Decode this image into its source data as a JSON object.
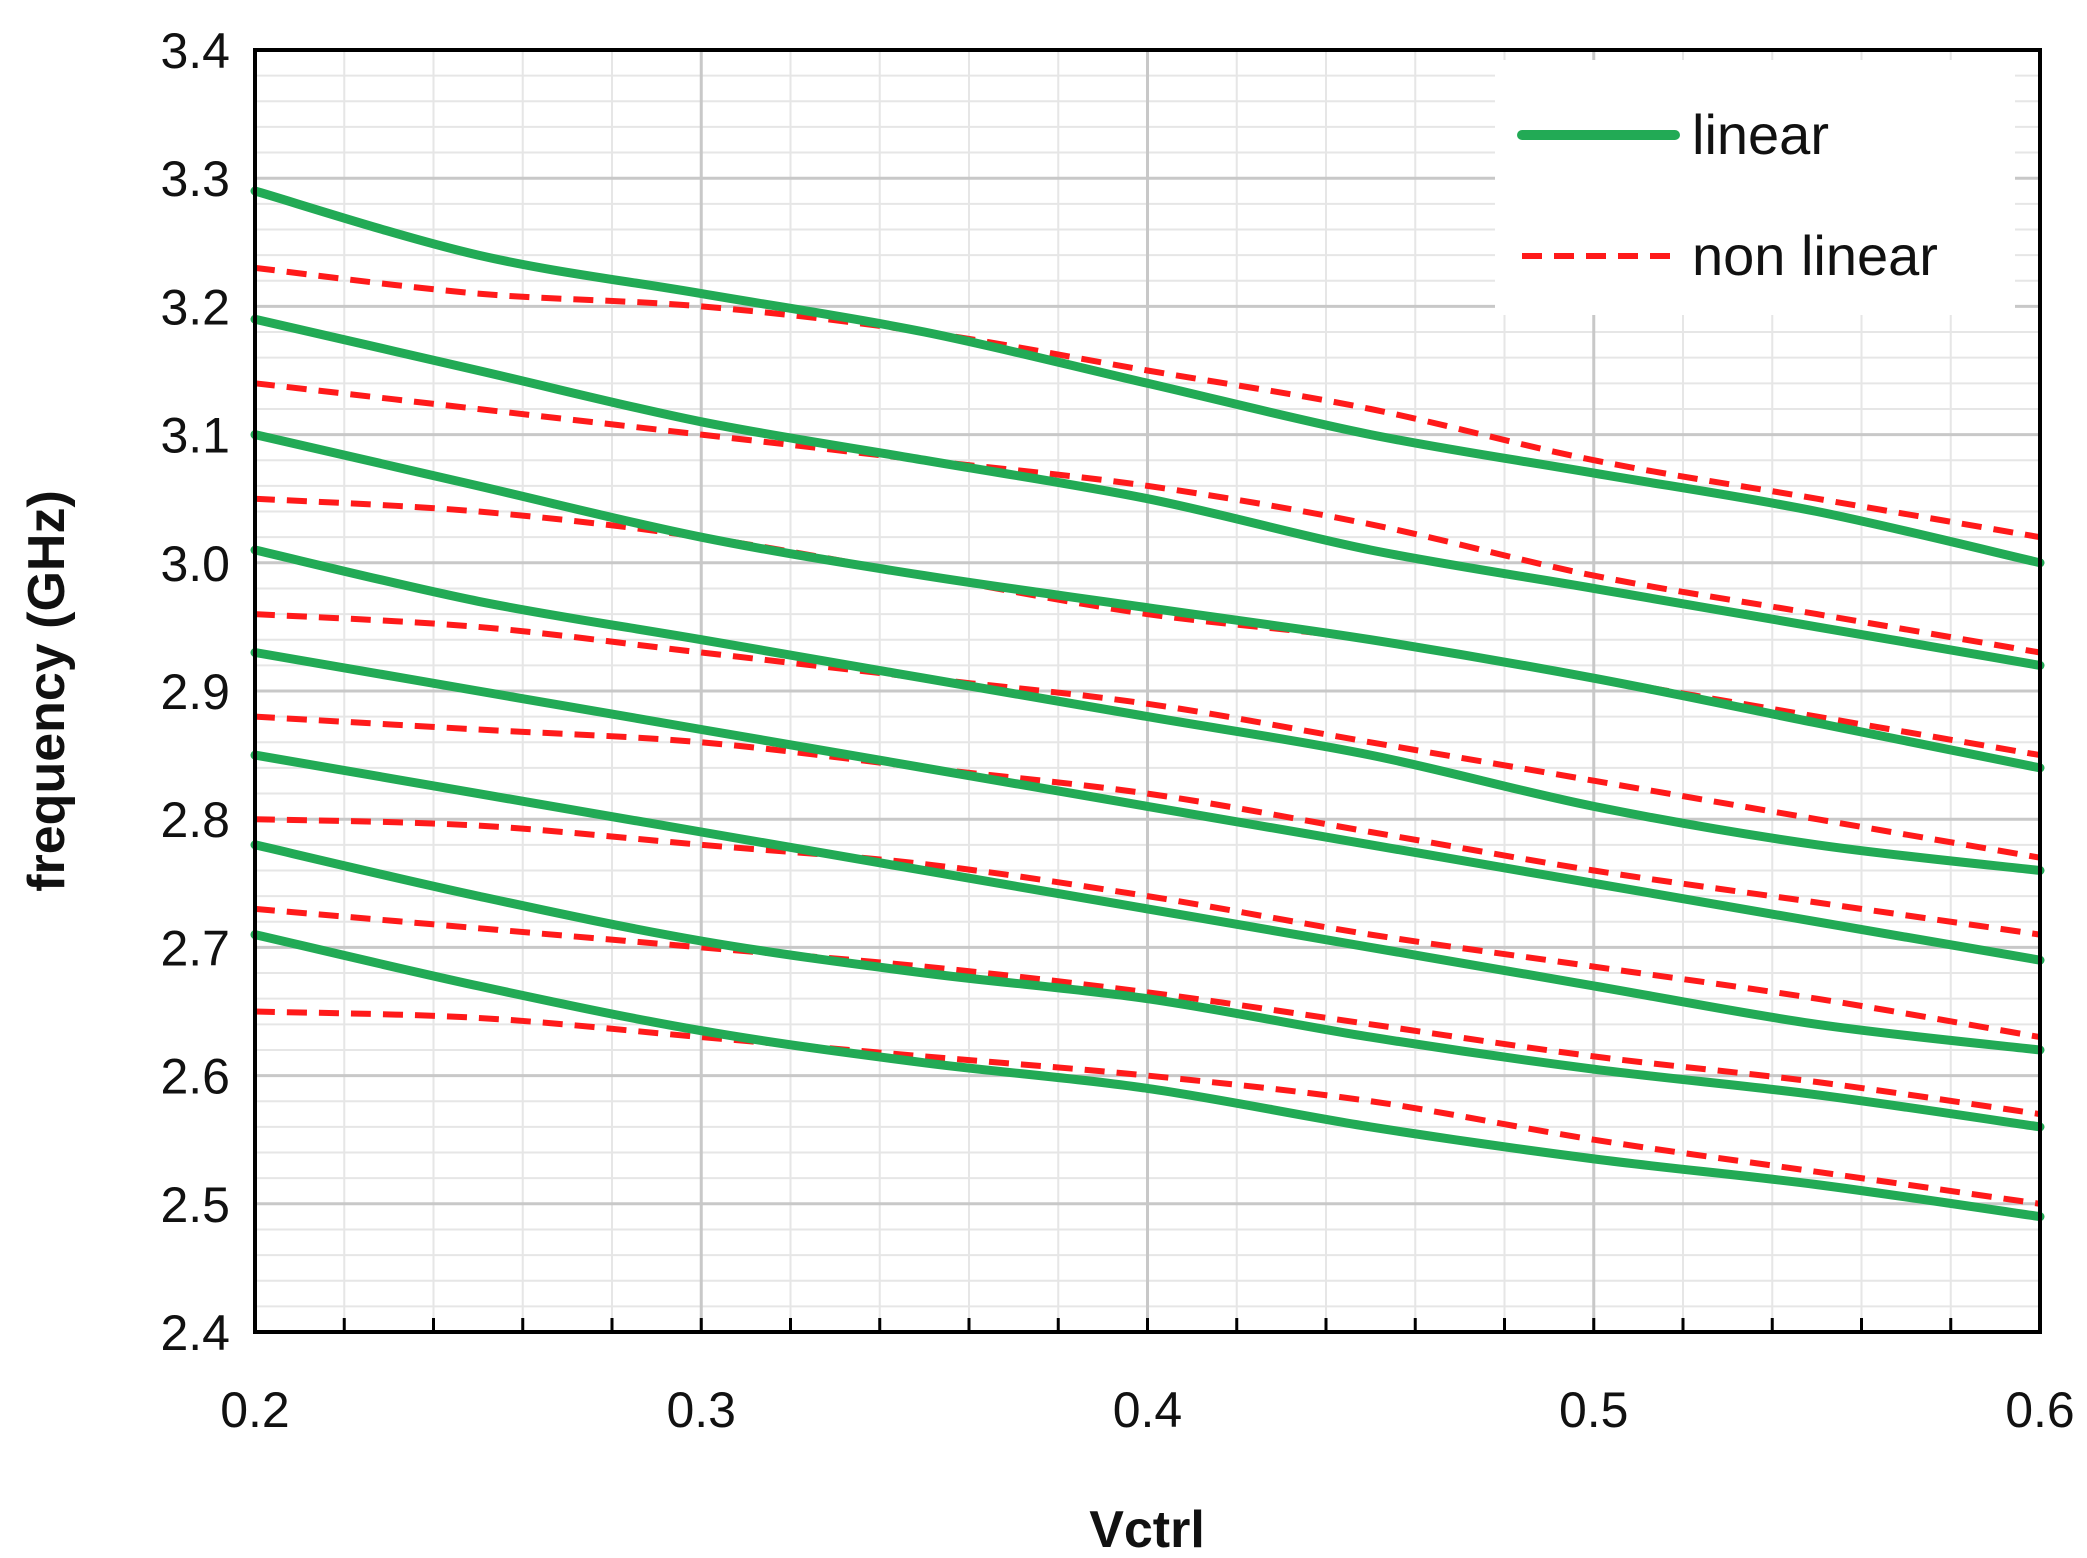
{
  "chart_data": {
    "type": "line",
    "title": "",
    "xlabel": "Vctrl",
    "ylabel": "frequency (GHz)",
    "xlim": [
      0.2,
      0.6
    ],
    "ylim": [
      2.4,
      3.4
    ],
    "xticks": [
      "0.2",
      "0.3",
      "0.4",
      "0.5",
      "0.6"
    ],
    "yticks": [
      "2.4",
      "2.5",
      "2.6",
      "2.7",
      "2.8",
      "2.9",
      "3.0",
      "3.1",
      "3.2",
      "3.3",
      "3.4"
    ],
    "grid": "major and minor",
    "legend_position": "top-right",
    "legend": [
      {
        "label": "linear",
        "style": "solid",
        "color": "#22aa55"
      },
      {
        "label": "non linear",
        "style": "dashed",
        "color": "#ff1a1a"
      }
    ],
    "x": [
      0.2,
      0.25,
      0.3,
      0.35,
      0.4,
      0.45,
      0.5,
      0.55,
      0.6
    ],
    "series": [
      {
        "group": "linear",
        "values": [
          3.29,
          3.24,
          3.21,
          3.18,
          3.14,
          3.1,
          3.07,
          3.04,
          3.0
        ]
      },
      {
        "group": "linear",
        "values": [
          3.19,
          3.15,
          3.11,
          3.08,
          3.05,
          3.01,
          2.98,
          2.95,
          2.92
        ]
      },
      {
        "group": "linear",
        "values": [
          3.1,
          3.06,
          3.02,
          2.99,
          2.965,
          2.94,
          2.91,
          2.875,
          2.84
        ]
      },
      {
        "group": "linear",
        "values": [
          3.01,
          2.97,
          2.94,
          2.91,
          2.88,
          2.85,
          2.81,
          2.78,
          2.76
        ]
      },
      {
        "group": "linear",
        "values": [
          2.93,
          2.9,
          2.87,
          2.84,
          2.81,
          2.78,
          2.75,
          2.72,
          2.69
        ]
      },
      {
        "group": "linear",
        "values": [
          2.85,
          2.82,
          2.79,
          2.76,
          2.73,
          2.7,
          2.67,
          2.64,
          2.62
        ]
      },
      {
        "group": "linear",
        "values": [
          2.78,
          2.74,
          2.705,
          2.68,
          2.66,
          2.63,
          2.605,
          2.585,
          2.56
        ]
      },
      {
        "group": "linear",
        "values": [
          2.71,
          2.67,
          2.635,
          2.61,
          2.59,
          2.56,
          2.535,
          2.515,
          2.49
        ]
      },
      {
        "group": "non linear",
        "values": [
          3.23,
          3.21,
          3.2,
          3.18,
          3.15,
          3.12,
          3.08,
          3.05,
          3.02
        ]
      },
      {
        "group": "non linear",
        "values": [
          3.14,
          3.12,
          3.1,
          3.08,
          3.06,
          3.03,
          2.99,
          2.96,
          2.93
        ]
      },
      {
        "group": "non linear",
        "values": [
          3.05,
          3.04,
          3.02,
          2.99,
          2.96,
          2.94,
          2.91,
          2.88,
          2.85
        ]
      },
      {
        "group": "non linear",
        "values": [
          2.96,
          2.95,
          2.93,
          2.91,
          2.89,
          2.86,
          2.83,
          2.8,
          2.77
        ]
      },
      {
        "group": "non linear",
        "values": [
          2.88,
          2.87,
          2.86,
          2.84,
          2.82,
          2.79,
          2.76,
          2.735,
          2.71
        ]
      },
      {
        "group": "non linear",
        "values": [
          2.8,
          2.795,
          2.78,
          2.765,
          2.74,
          2.71,
          2.685,
          2.66,
          2.63
        ]
      },
      {
        "group": "non linear",
        "values": [
          2.73,
          2.715,
          2.7,
          2.685,
          2.665,
          2.64,
          2.615,
          2.595,
          2.57
        ]
      },
      {
        "group": "non linear",
        "values": [
          2.65,
          2.645,
          2.63,
          2.615,
          2.6,
          2.58,
          2.55,
          2.525,
          2.5
        ]
      }
    ]
  }
}
